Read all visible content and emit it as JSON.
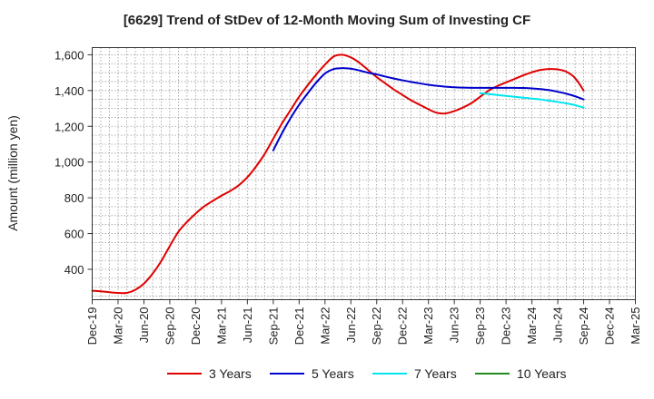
{
  "chart_data": {
    "type": "line",
    "title": "[6629]  Trend of StDev of 12-Month Moving Sum of Investing CF",
    "xlabel": "",
    "ylabel": "Amount (million yen)",
    "ylim": [
      230,
      1640
    ],
    "yticks": [
      400,
      600,
      800,
      1000,
      1200,
      1400,
      1600
    ],
    "ytick_labels": [
      "400",
      "600",
      "800",
      "1,000",
      "1,200",
      "1,400",
      "1,600"
    ],
    "xtick_labels": [
      "Dec-19",
      "Mar-20",
      "Jun-20",
      "Sep-20",
      "Dec-20",
      "Mar-21",
      "Jun-21",
      "Sep-21",
      "Dec-21",
      "Mar-22",
      "Jun-22",
      "Sep-22",
      "Dec-22",
      "Mar-23",
      "Jun-23",
      "Sep-23",
      "Dec-23",
      "Mar-24",
      "Jun-24",
      "Sep-24",
      "Dec-24",
      "Mar-25"
    ],
    "x_start": "Dec-19",
    "grid": true,
    "legend_position": "bottom",
    "series": [
      {
        "name": "3 Years",
        "color": "#e00000",
        "x": [
          "Dec-19",
          "Jan-20",
          "Feb-20",
          "Mar-20",
          "Apr-20",
          "May-20",
          "Jun-20",
          "Jul-20",
          "Aug-20",
          "Sep-20",
          "Oct-20",
          "Nov-20",
          "Dec-20",
          "Jan-21",
          "Feb-21",
          "Mar-21",
          "Apr-21",
          "May-21",
          "Jun-21",
          "Jul-21",
          "Aug-21",
          "Sep-21",
          "Oct-21",
          "Nov-21",
          "Dec-21",
          "Jan-22",
          "Feb-22",
          "Mar-22",
          "Apr-22",
          "May-22",
          "Jun-22",
          "Jul-22",
          "Aug-22",
          "Sep-22",
          "Oct-22",
          "Nov-22",
          "Dec-22",
          "Jan-23",
          "Feb-23",
          "Mar-23",
          "Apr-23",
          "May-23",
          "Jun-23",
          "Jul-23",
          "Aug-23",
          "Sep-23",
          "Oct-23",
          "Nov-23",
          "Dec-23",
          "Jan-24",
          "Feb-24",
          "Mar-24",
          "Apr-24",
          "May-24",
          "Jun-24",
          "Jul-24",
          "Aug-24",
          "Sep-24"
        ],
        "values": [
          280,
          277,
          272,
          268,
          268,
          285,
          320,
          375,
          445,
          530,
          610,
          665,
          712,
          752,
          783,
          812,
          838,
          870,
          915,
          975,
          1045,
          1130,
          1215,
          1290,
          1365,
          1430,
          1490,
          1545,
          1590,
          1600,
          1585,
          1555,
          1515,
          1475,
          1440,
          1405,
          1375,
          1345,
          1320,
          1295,
          1275,
          1272,
          1285,
          1305,
          1330,
          1365,
          1400,
          1425,
          1445,
          1465,
          1485,
          1502,
          1515,
          1520,
          1518,
          1505,
          1470,
          1400
        ]
      },
      {
        "name": "5 Years",
        "color": "#0000cc",
        "x": [
          "Sep-21",
          "Oct-21",
          "Nov-21",
          "Dec-21",
          "Jan-22",
          "Feb-22",
          "Mar-22",
          "Apr-22",
          "May-22",
          "Jun-22",
          "Jul-22",
          "Aug-22",
          "Sep-22",
          "Oct-22",
          "Nov-22",
          "Dec-22",
          "Jan-23",
          "Feb-23",
          "Mar-23",
          "Apr-23",
          "May-23",
          "Jun-23",
          "Jul-23",
          "Aug-23",
          "Sep-23",
          "Oct-23",
          "Nov-23",
          "Dec-23",
          "Jan-24",
          "Feb-24",
          "Mar-24",
          "Apr-24",
          "May-24",
          "Jun-24",
          "Jul-24",
          "Aug-24",
          "Sep-24"
        ],
        "values": [
          1065,
          1160,
          1245,
          1320,
          1385,
          1445,
          1495,
          1520,
          1525,
          1522,
          1512,
          1500,
          1490,
          1478,
          1467,
          1457,
          1448,
          1440,
          1432,
          1426,
          1421,
          1418,
          1416,
          1415,
          1415,
          1415,
          1415,
          1415,
          1415,
          1414,
          1412,
          1408,
          1402,
          1393,
          1382,
          1368,
          1350
        ]
      },
      {
        "name": "7 Years",
        "color": "#00e5ee",
        "x": [
          "Sep-23",
          "Oct-23",
          "Nov-23",
          "Dec-23",
          "Jan-24",
          "Feb-24",
          "Mar-24",
          "Apr-24",
          "May-24",
          "Jun-24",
          "Jul-24",
          "Aug-24",
          "Sep-24"
        ],
        "values": [
          1385,
          1380,
          1375,
          1370,
          1365,
          1360,
          1355,
          1350,
          1343,
          1336,
          1328,
          1318,
          1305
        ]
      },
      {
        "name": "10 Years",
        "color": "#228b22",
        "x": [],
        "values": []
      }
    ]
  }
}
